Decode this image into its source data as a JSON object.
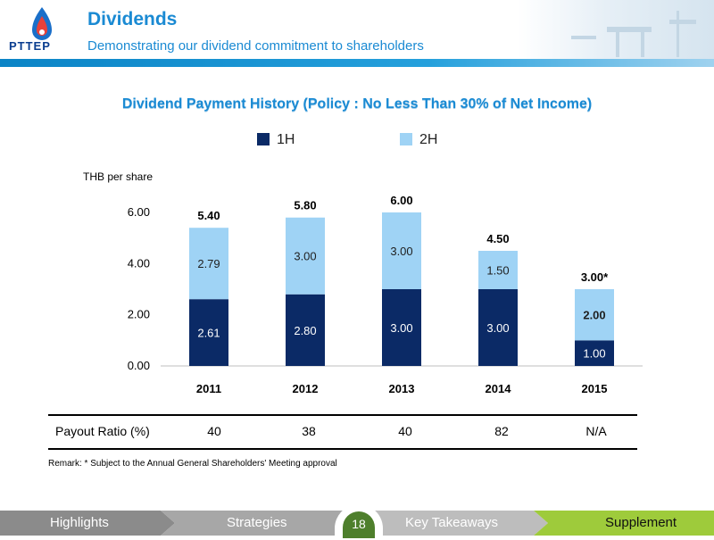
{
  "header": {
    "title": "Dividends",
    "subtitle": "Demonstrating our dividend commitment to shareholders",
    "logo_text": "PTTEP"
  },
  "chart_data": {
    "type": "bar",
    "stacked": true,
    "title": "Dividend Payment History (Policy : No Less Than 30% of Net Income)",
    "ylabel": "THB per share",
    "xlabel": "",
    "categories": [
      "2011",
      "2012",
      "2013",
      "2014",
      "2015"
    ],
    "series": [
      {
        "name": "1H",
        "color": "#0b2a66",
        "values": [
          2.61,
          2.8,
          3.0,
          3.0,
          1.0
        ],
        "labels": [
          "2.61",
          "2.80",
          "3.00",
          "3.00",
          "1.00"
        ]
      },
      {
        "name": "2H",
        "color": "#9fd3f5",
        "values": [
          2.79,
          3.0,
          3.0,
          1.5,
          2.0
        ],
        "labels": [
          "2.79",
          "3.00",
          "3.00",
          "1.50",
          "2.00"
        ]
      }
    ],
    "totals": [
      "5.40",
      "5.80",
      "6.00",
      "4.50",
      "3.00*"
    ],
    "ylim": [
      0,
      6
    ],
    "yticks": [
      "0.00",
      "2.00",
      "4.00",
      "6.00"
    ],
    "ytick_values": [
      0,
      2,
      4,
      6
    ],
    "grid": false,
    "legend_position": "top"
  },
  "payout": {
    "label": "Payout Ratio (%)",
    "values": [
      "40",
      "38",
      "40",
      "82",
      "N/A"
    ]
  },
  "remark": "Remark:  *   Subject to the Annual General Shareholders' Meeting approval",
  "footer": {
    "tabs": [
      "Highlights",
      "Strategies",
      "Key Takeaways",
      "Supplement"
    ],
    "page_number": "18"
  }
}
